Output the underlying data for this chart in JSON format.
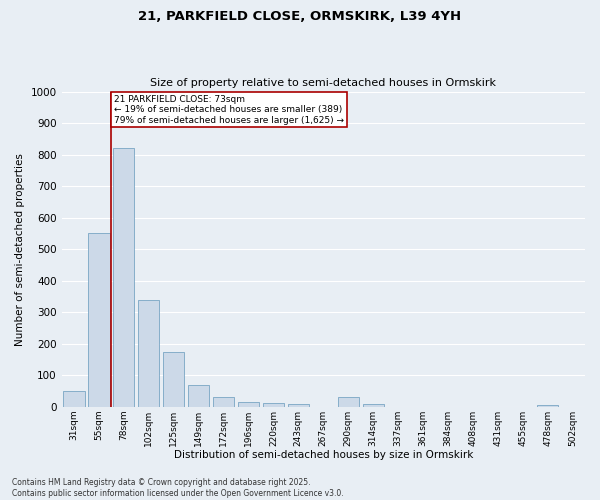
{
  "title_line1": "21, PARKFIELD CLOSE, ORMSKIRK, L39 4YH",
  "title_line2": "Size of property relative to semi-detached houses in Ormskirk",
  "xlabel": "Distribution of semi-detached houses by size in Ormskirk",
  "ylabel": "Number of semi-detached properties",
  "categories": [
    "31sqm",
    "55sqm",
    "78sqm",
    "102sqm",
    "125sqm",
    "149sqm",
    "172sqm",
    "196sqm",
    "220sqm",
    "243sqm",
    "267sqm",
    "290sqm",
    "314sqm",
    "337sqm",
    "361sqm",
    "384sqm",
    "408sqm",
    "431sqm",
    "455sqm",
    "478sqm",
    "502sqm"
  ],
  "values": [
    50,
    550,
    820,
    340,
    175,
    70,
    30,
    15,
    12,
    10,
    0,
    30,
    10,
    0,
    0,
    0,
    0,
    0,
    0,
    5,
    0
  ],
  "bar_color": "#ccd9e8",
  "bar_edge_color": "#6699bb",
  "marker_label": "21 PARKFIELD CLOSE: 73sqm",
  "annotation_line1": "← 19% of semi-detached houses are smaller (389)",
  "annotation_line2": "79% of semi-detached houses are larger (1,625) →",
  "marker_color": "#aa0000",
  "box_color": "#aa0000",
  "ylim": [
    0,
    1000
  ],
  "yticks": [
    0,
    100,
    200,
    300,
    400,
    500,
    600,
    700,
    800,
    900,
    1000
  ],
  "footnote_line1": "Contains HM Land Registry data © Crown copyright and database right 2025.",
  "footnote_line2": "Contains public sector information licensed under the Open Government Licence v3.0.",
  "bg_color": "#e8eef4",
  "grid_color": "#ffffff"
}
